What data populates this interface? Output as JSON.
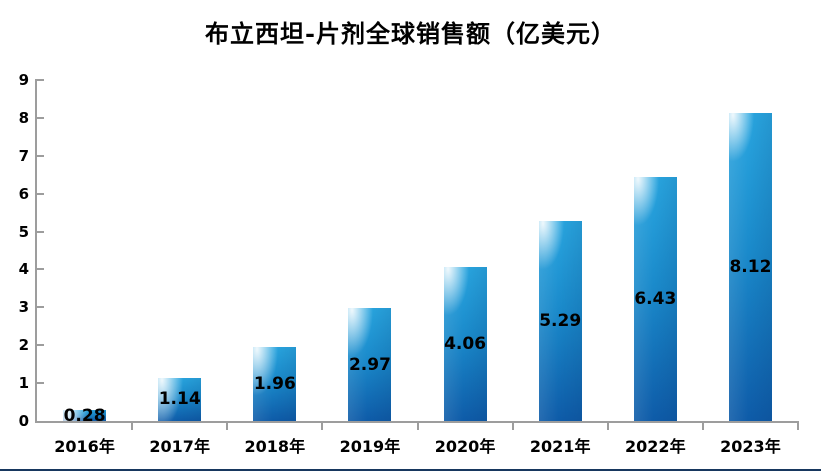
{
  "chart_data": {
    "type": "bar",
    "title": "布立西坦-片剂全球销售额（亿美元）",
    "categories": [
      "2016年",
      "2017年",
      "2018年",
      "2019年",
      "2020年",
      "2021年",
      "2022年",
      "2023年"
    ],
    "values": [
      0.28,
      1.14,
      1.96,
      2.97,
      4.06,
      5.29,
      6.43,
      8.12
    ],
    "value_labels": [
      "0.28",
      "1.14",
      "1.96",
      "2.97",
      "4.06",
      "5.29",
      "6.43",
      "8.12"
    ],
    "xlabel": "",
    "ylabel": "",
    "ylim": [
      0,
      9
    ],
    "ytick_labels": [
      "0",
      "1",
      "2",
      "3",
      "4",
      "5",
      "6",
      "7",
      "8",
      "9"
    ],
    "grid": false,
    "legend": "none",
    "data_label_position": "center",
    "style": {
      "bar_color_top": "#29A6E0",
      "bar_color_mid": "#1A8ACB",
      "bar_color_bottom": "#0E5BA8",
      "bar_highlight": "#FFFFFF",
      "axis_color": "#9D9D9D",
      "label_color": "#000000",
      "bottom_rule_color": "#17375E"
    }
  }
}
